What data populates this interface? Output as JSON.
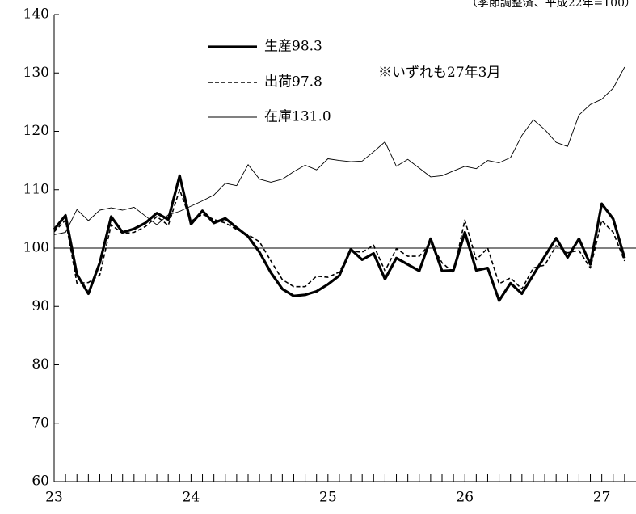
{
  "corner_note": "（季節調整済、平成22年=100）",
  "chart_data": {
    "type": "line",
    "title": "",
    "xlabel": "",
    "ylabel": "",
    "ylim": [
      60,
      140
    ],
    "yticks": [
      60,
      70,
      80,
      90,
      100,
      110,
      120,
      130,
      140
    ],
    "x_range": [
      23,
      27.25
    ],
    "xticks": [
      23,
      24,
      25,
      26,
      27
    ],
    "reference_line": 100,
    "grid": false,
    "legend_position": "top-left",
    "note": "※いずれも27年3月",
    "x": [
      23.0,
      23.0833,
      23.1667,
      23.25,
      23.3333,
      23.4167,
      23.5,
      23.5833,
      23.6667,
      23.75,
      23.8333,
      23.9167,
      24.0,
      24.0833,
      24.1667,
      24.25,
      24.3333,
      24.4167,
      24.5,
      24.5833,
      24.6667,
      24.75,
      24.8333,
      24.9167,
      25.0,
      25.0833,
      25.1667,
      25.25,
      25.3333,
      25.4167,
      25.5,
      25.5833,
      25.6667,
      25.75,
      25.8333,
      25.9167,
      26.0,
      26.0833,
      26.1667,
      26.25,
      26.3333,
      26.4167,
      26.5,
      26.5833,
      26.6667,
      26.75,
      26.8333,
      26.9167,
      27.0,
      27.0833,
      27.1667
    ],
    "series": [
      {
        "name": "生産98.3",
        "style": "solid-thick",
        "color": "#000000",
        "values": [
          103.2,
          105.6,
          95.5,
          92.2,
          97.5,
          105.4,
          102.7,
          103.3,
          104.3,
          106.0,
          104.9,
          112.4,
          104.1,
          106.4,
          104.3,
          105.1,
          103.5,
          102.0,
          99.3,
          95.8,
          93.0,
          91.8,
          92.0,
          92.6,
          93.8,
          95.3,
          99.8,
          98.0,
          99.1,
          94.7,
          98.3,
          97.2,
          96.1,
          101.6,
          96.1,
          96.2,
          102.7,
          96.2,
          96.6,
          91.0,
          94.0,
          92.2,
          95.4,
          98.6,
          101.7,
          98.4,
          101.6,
          97.2,
          107.6,
          105.0,
          98.3
        ]
      },
      {
        "name": "出荷97.8",
        "style": "dashed",
        "color": "#000000",
        "values": [
          102.8,
          104.8,
          94.0,
          94.1,
          95.4,
          104.0,
          102.5,
          102.7,
          103.7,
          105.4,
          103.9,
          110.0,
          104.6,
          105.8,
          104.9,
          104.3,
          103.2,
          102.3,
          101.1,
          97.8,
          94.6,
          93.4,
          93.4,
          95.2,
          95.0,
          95.9,
          99.5,
          99.3,
          100.5,
          96.1,
          99.9,
          98.6,
          98.6,
          100.9,
          97.5,
          95.8,
          104.8,
          98.0,
          100.0,
          93.9,
          94.9,
          93.0,
          96.6,
          97.1,
          100.4,
          99.2,
          99.6,
          96.6,
          104.7,
          102.7,
          97.8
        ]
      },
      {
        "name": "在庫131.0",
        "style": "solid-thin",
        "color": "#000000",
        "values": [
          102.3,
          102.7,
          106.6,
          104.7,
          106.5,
          106.9,
          106.5,
          107.0,
          105.5,
          104.0,
          105.7,
          106.3,
          107.2,
          108.1,
          109.1,
          111.1,
          110.7,
          114.3,
          111.8,
          111.3,
          111.8,
          113.1,
          114.2,
          113.4,
          115.3,
          115.0,
          114.8,
          114.9,
          116.5,
          118.2,
          114.0,
          115.2,
          113.7,
          112.2,
          112.4,
          113.2,
          114.0,
          113.6,
          115.0,
          114.6,
          115.5,
          119.3,
          122.0,
          120.3,
          118.1,
          117.4,
          122.8,
          124.6,
          125.5,
          127.4,
          131.0
        ]
      }
    ]
  }
}
